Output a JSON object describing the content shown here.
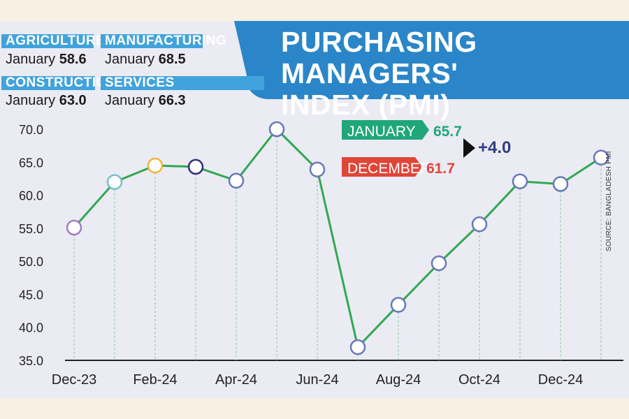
{
  "title_line1": "PURCHASING MANAGERS'",
  "title_line2": "INDEX (PMI)",
  "source": "SOURCE: BANGLADESH PMI",
  "colors": {
    "banner": "#2a86c8",
    "tab": "#41a3dc",
    "line": "#31a851",
    "marker_edge": "#6878b8",
    "jan_tag": "#1fa77a",
    "dec_tag": "#e04638",
    "change": "#2f3f7f"
  },
  "sectors": [
    {
      "name": "AGRICULTURE",
      "period": "January",
      "value": "58.6"
    },
    {
      "name": "MANUFACTURING",
      "period": "January",
      "value": "68.5"
    },
    {
      "name": "CONSTRUCTION",
      "period": "January",
      "value": "63.0"
    },
    {
      "name": "SERVICES",
      "period": "January",
      "value": "66.3"
    }
  ],
  "chart_data": {
    "type": "line",
    "title": "PURCHASING MANAGERS' INDEX (PMI)",
    "xlabel": "",
    "ylabel": "",
    "ylim": [
      35,
      70
    ],
    "y_ticks": [
      "35.0",
      "40.0",
      "45.0",
      "50.0",
      "55.0",
      "60.0",
      "65.0",
      "70.0"
    ],
    "months": [
      "Dec-23",
      "Jan-24",
      "Feb-24",
      "Mar-24",
      "Apr-24",
      "May-24",
      "Jun-24",
      "Jul-24",
      "Aug-24",
      "Sep-24",
      "Oct-24",
      "Nov-24",
      "Dec-24",
      "Jan-25"
    ],
    "x_tick_labels": [
      "Dec-23",
      "Feb-24",
      "Apr-24",
      "Jun-24",
      "Aug-24",
      "Oct-24",
      "Dec-24"
    ],
    "x_tick_indices": [
      0,
      2,
      4,
      6,
      8,
      10,
      12
    ],
    "values": [
      55.1,
      62.0,
      64.5,
      64.3,
      62.2,
      70.0,
      63.9,
      37.0,
      43.4,
      49.7,
      55.6,
      62.1,
      61.7,
      65.7
    ],
    "marker_fill_colors": [
      "#ffffff",
      "#ffffff",
      "#ffffff",
      "#ffffff",
      "#ffffff",
      "#ffffff",
      "#ffffff",
      "#ffffff",
      "#ffffff",
      "#ffffff",
      "#ffffff",
      "#ffffff",
      "#ffffff",
      "#ffffff"
    ],
    "marker_edge_colors": [
      "#a07cc0",
      "#74c0c8",
      "#f0b43a",
      "#2f2f7a",
      "#6878b8",
      "#6878b8",
      "#6878b8",
      "#6878b8",
      "#6878b8",
      "#6878b8",
      "#6878b8",
      "#6878b8",
      "#6878b8",
      "#6878b8"
    ],
    "annotations": {
      "current_label": "JANUARY",
      "current_value": "65.7",
      "previous_label": "DECEMBER",
      "previous_value": "61.7",
      "change": "+4.0"
    }
  }
}
